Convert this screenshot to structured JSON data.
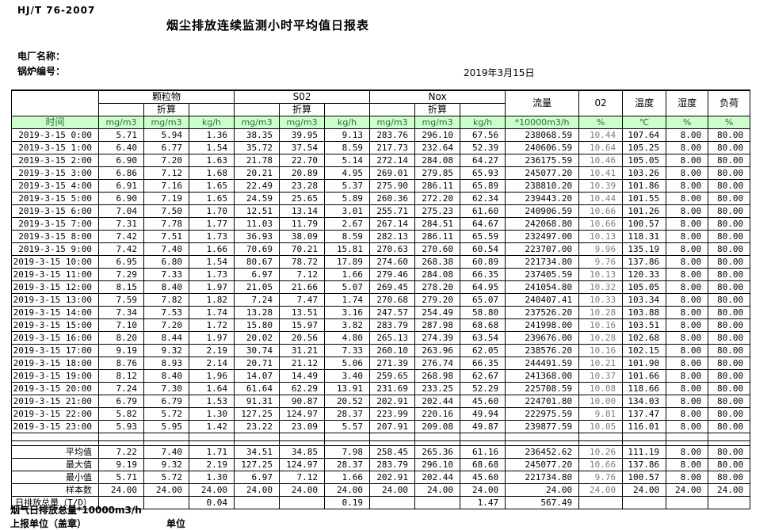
{
  "meta": {
    "standard": "HJ/T  76-2007",
    "title": "烟尘排放连续监测小时平均值日报表",
    "plant_label": "电厂名称：",
    "boiler_label": "锅炉编号：",
    "date": "2019年3月15日"
  },
  "table": {
    "time_label": "时间",
    "converted_label": "折算",
    "groups": {
      "pm": "颗粒物",
      "so2": "S02",
      "nox": "Nox",
      "flow": "流量",
      "o2": "02",
      "temp": "温度",
      "humidity": "湿度",
      "load": "负荷"
    },
    "units": [
      "mg/m3",
      "mg/m3",
      "kg/h",
      "mg/m3",
      "mg/m3",
      "kg/h",
      "mg/m3",
      "mg/m3",
      "kg/h",
      "*10000m3/h",
      "%",
      "℃",
      "%",
      "%"
    ],
    "rows": [
      {
        "time": "2019-3-15 0:00",
        "values": [
          "5.71",
          "5.94",
          "1.36",
          "38.35",
          "39.95",
          "9.13",
          "283.76",
          "296.10",
          "67.56",
          "238068.59",
          "10.44",
          "107.64",
          "8.00",
          "80.00"
        ]
      },
      {
        "time": "2019-3-15 1:00",
        "values": [
          "6.40",
          "6.77",
          "1.54",
          "35.72",
          "37.54",
          "8.59",
          "217.73",
          "232.64",
          "52.39",
          "240606.59",
          "10.64",
          "105.25",
          "8.00",
          "80.00"
        ]
      },
      {
        "time": "2019-3-15 2:00",
        "values": [
          "6.90",
          "7.20",
          "1.63",
          "21.78",
          "22.70",
          "5.14",
          "272.14",
          "284.08",
          "64.27",
          "236175.59",
          "10.46",
          "105.05",
          "8.00",
          "80.00"
        ]
      },
      {
        "time": "2019-3-15 3:00",
        "values": [
          "6.86",
          "7.12",
          "1.68",
          "20.21",
          "20.89",
          "4.95",
          "269.01",
          "279.85",
          "65.93",
          "245077.20",
          "10.41",
          "103.26",
          "8.00",
          "80.00"
        ]
      },
      {
        "time": "2019-3-15 4:00",
        "values": [
          "6.91",
          "7.16",
          "1.65",
          "22.49",
          "23.28",
          "5.37",
          "275.90",
          "286.11",
          "65.89",
          "238810.20",
          "10.39",
          "101.86",
          "8.00",
          "80.00"
        ]
      },
      {
        "time": "2019-3-15 5:00",
        "values": [
          "6.90",
          "7.19",
          "1.65",
          "24.59",
          "25.65",
          "5.89",
          "260.36",
          "272.20",
          "62.34",
          "239443.20",
          "10.44",
          "101.55",
          "8.00",
          "80.00"
        ]
      },
      {
        "time": "2019-3-15 6:00",
        "values": [
          "7.04",
          "7.50",
          "1.70",
          "12.51",
          "13.14",
          "3.01",
          "255.71",
          "275.23",
          "61.60",
          "240906.59",
          "10.66",
          "101.26",
          "8.00",
          "80.00"
        ]
      },
      {
        "time": "2019-3-15 7:00",
        "values": [
          "7.31",
          "7.78",
          "1.77",
          "11.03",
          "11.79",
          "2.67",
          "267.14",
          "284.51",
          "64.67",
          "242068.80",
          "10.66",
          "100.57",
          "8.00",
          "80.00"
        ]
      },
      {
        "time": "2019-3-15 8:00",
        "values": [
          "7.42",
          "7.51",
          "1.73",
          "36.93",
          "38.09",
          "8.59",
          "282.13",
          "286.11",
          "65.59",
          "232497.00",
          "10.13",
          "118.31",
          "8.00",
          "80.00"
        ]
      },
      {
        "time": "2019-3-15 9:00",
        "values": [
          "7.42",
          "7.40",
          "1.66",
          "70.69",
          "70.21",
          "15.81",
          "270.63",
          "270.60",
          "60.54",
          "223707.00",
          "9.96",
          "135.19",
          "8.00",
          "80.00"
        ]
      },
      {
        "time": "2019-3-15 10:00",
        "values": [
          "6.95",
          "6.80",
          "1.54",
          "80.67",
          "78.72",
          "17.89",
          "274.60",
          "268.38",
          "60.89",
          "221734.80",
          "9.76",
          "137.86",
          "8.00",
          "80.00"
        ]
      },
      {
        "time": "2019-3-15 11:00",
        "values": [
          "7.29",
          "7.33",
          "1.73",
          "6.97",
          "7.12",
          "1.66",
          "279.46",
          "284.08",
          "66.35",
          "237405.59",
          "10.13",
          "120.33",
          "8.00",
          "80.00"
        ]
      },
      {
        "time": "2019-3-15 12:00",
        "values": [
          "8.15",
          "8.40",
          "1.97",
          "21.05",
          "21.66",
          "5.07",
          "269.45",
          "278.20",
          "64.95",
          "241054.80",
          "10.32",
          "105.05",
          "8.00",
          "80.00"
        ]
      },
      {
        "time": "2019-3-15 13:00",
        "values": [
          "7.59",
          "7.82",
          "1.82",
          "7.24",
          "7.47",
          "1.74",
          "270.68",
          "279.20",
          "65.07",
          "240407.41",
          "10.33",
          "103.34",
          "8.00",
          "80.00"
        ]
      },
      {
        "time": "2019-3-15 14:00",
        "values": [
          "7.34",
          "7.53",
          "1.74",
          "13.28",
          "13.51",
          "3.16",
          "247.57",
          "254.49",
          "58.80",
          "237526.20",
          "10.28",
          "103.88",
          "8.00",
          "80.00"
        ]
      },
      {
        "time": "2019-3-15 15:00",
        "values": [
          "7.10",
          "7.20",
          "1.72",
          "15.80",
          "15.97",
          "3.82",
          "283.79",
          "287.98",
          "68.68",
          "241998.00",
          "10.16",
          "103.51",
          "8.00",
          "80.00"
        ]
      },
      {
        "time": "2019-3-15 16:00",
        "values": [
          "8.20",
          "8.44",
          "1.97",
          "20.02",
          "20.56",
          "4.80",
          "265.13",
          "274.39",
          "63.54",
          "239676.00",
          "10.28",
          "102.68",
          "8.00",
          "80.00"
        ]
      },
      {
        "time": "2019-3-15 17:00",
        "values": [
          "9.19",
          "9.32",
          "2.19",
          "30.74",
          "31.21",
          "7.33",
          "260.10",
          "263.96",
          "62.05",
          "238576.20",
          "10.16",
          "102.15",
          "8.00",
          "80.00"
        ]
      },
      {
        "time": "2019-3-15 18:00",
        "values": [
          "8.76",
          "8.93",
          "2.14",
          "20.71",
          "21.12",
          "5.06",
          "271.39",
          "276.74",
          "66.35",
          "244491.59",
          "10.21",
          "101.90",
          "8.00",
          "80.00"
        ]
      },
      {
        "time": "2019-3-15 19:00",
        "values": [
          "8.12",
          "8.40",
          "1.96",
          "14.07",
          "14.49",
          "3.40",
          "259.65",
          "268.98",
          "62.67",
          "241368.00",
          "10.37",
          "101.66",
          "8.00",
          "80.00"
        ]
      },
      {
        "time": "2019-3-15 20:00",
        "values": [
          "7.24",
          "7.30",
          "1.64",
          "61.64",
          "62.29",
          "13.91",
          "231.69",
          "233.25",
          "52.29",
          "225708.59",
          "10.08",
          "118.66",
          "8.00",
          "80.00"
        ]
      },
      {
        "time": "2019-3-15 21:00",
        "values": [
          "6.79",
          "6.79",
          "1.53",
          "91.31",
          "90.87",
          "20.52",
          "202.91",
          "202.44",
          "45.60",
          "224701.80",
          "10.00",
          "134.03",
          "8.00",
          "80.00"
        ]
      },
      {
        "time": "2019-3-15 22:00",
        "values": [
          "5.82",
          "5.72",
          "1.30",
          "127.25",
          "124.97",
          "28.37",
          "223.99",
          "220.16",
          "49.94",
          "222975.59",
          "9.81",
          "137.47",
          "8.00",
          "80.00"
        ]
      },
      {
        "time": "2019-3-15 23:00",
        "values": [
          "5.93",
          "5.95",
          "1.42",
          "23.22",
          "23.09",
          "5.57",
          "207.91",
          "209.08",
          "49.87",
          "239877.59",
          "10.05",
          "116.01",
          "8.00",
          "80.00"
        ]
      }
    ],
    "summary": [
      {
        "label": "平均值",
        "align": "right",
        "values": [
          "7.22",
          "7.40",
          "1.71",
          "34.51",
          "34.85",
          "7.98",
          "258.45",
          "265.36",
          "61.16",
          "236452.62",
          "10.26",
          "111.19",
          "8.00",
          "80.00"
        ]
      },
      {
        "label": "最大值",
        "align": "right",
        "values": [
          "9.19",
          "9.32",
          "2.19",
          "127.25",
          "124.97",
          "28.37",
          "283.79",
          "296.10",
          "68.68",
          "245077.20",
          "10.66",
          "137.86",
          "8.00",
          "80.00"
        ]
      },
      {
        "label": "最小值",
        "align": "right",
        "values": [
          "5.71",
          "5.72",
          "1.30",
          "6.97",
          "7.12",
          "1.66",
          "202.91",
          "202.44",
          "45.60",
          "221734.80",
          "9.76",
          "100.57",
          "8.00",
          "80.00"
        ]
      },
      {
        "label": "样本数",
        "align": "right",
        "values": [
          "24.00",
          "24.00",
          "24.00",
          "24.00",
          "24.00",
          "24.00",
          "24.00",
          "24.00",
          "24.00",
          "24.00",
          "24.00",
          "24.00",
          "24.00",
          "24.00"
        ]
      },
      {
        "label": "日排放总量（T/D）",
        "align": "left",
        "values": [
          "",
          "",
          "0.04",
          "",
          "",
          "0.19",
          "",
          "",
          "1.47",
          "567.49",
          "",
          "",
          "",
          ""
        ]
      }
    ]
  },
  "footer": {
    "flue_total": "烟气日排放总量*10000m3/h",
    "report_unit": "上报单位（盖章）",
    "unit": "单位"
  },
  "colors": {
    "header_green_bg": "#ccffcc",
    "header_green_text": "#2f6e2f",
    "o2_text": "#7d7d7d",
    "grid": "#000000"
  }
}
